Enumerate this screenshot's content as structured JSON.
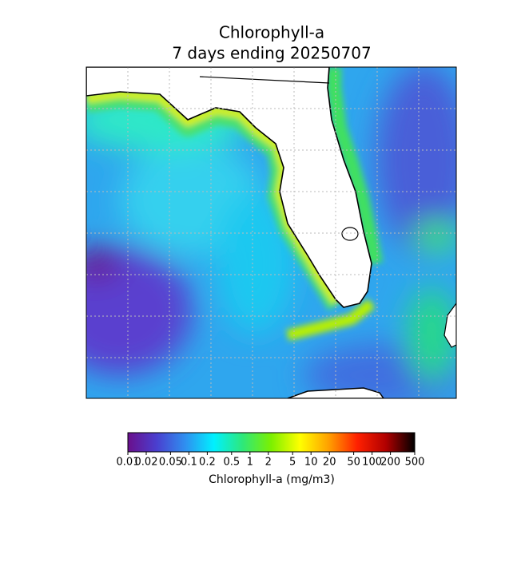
{
  "title": "Chlorophyll-a",
  "subtitle": "7 days ending 20250707",
  "colorbar": {
    "label": "Chlorophyll-a (mg/m3)",
    "scale": "log",
    "lim": [
      0.01,
      500
    ],
    "ticks": [
      0.01,
      0.02,
      0.05,
      0.1,
      0.2,
      0.5,
      1,
      2,
      5,
      10,
      20,
      50,
      100,
      200,
      500
    ],
    "colors": [
      "#6a0f8c",
      "#4a3fcf",
      "#2f8ff0",
      "#00f0ff",
      "#2ee87a",
      "#7cf000",
      "#ffff00",
      "#ffa000",
      "#ff2000",
      "#b00000",
      "#000000"
    ]
  }
}
